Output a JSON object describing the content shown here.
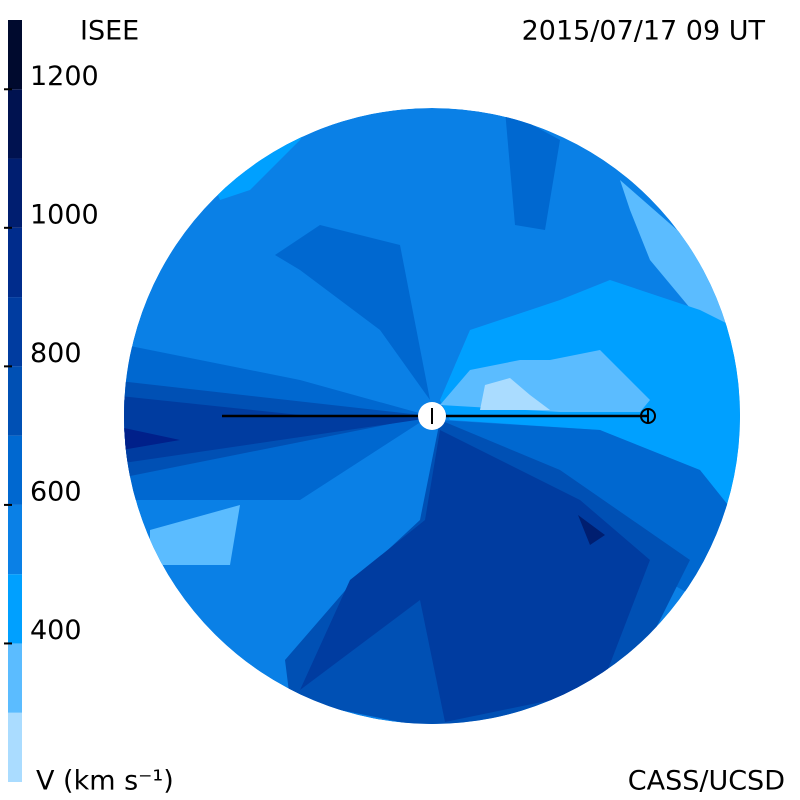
{
  "title": "ISEE",
  "date": "2015/07/17 09 UT",
  "credit": "CASS/UCSD",
  "colorbar": {
    "label": "V (km s⁻¹)",
    "range": [
      200,
      1300
    ],
    "ticks": [
      400,
      600,
      800,
      1000,
      1200
    ],
    "levels": [
      200,
      300,
      400,
      500,
      600,
      700,
      800,
      900,
      1000,
      1100,
      1200,
      1300
    ],
    "colors": [
      "#aadcff",
      "#5bbcff",
      "#00a0ff",
      "#0a80e6",
      "#0068d0",
      "#0050b4",
      "#003ca0",
      "#002c8c",
      "#001e70",
      "#001250",
      "#000a2e"
    ]
  }
}
